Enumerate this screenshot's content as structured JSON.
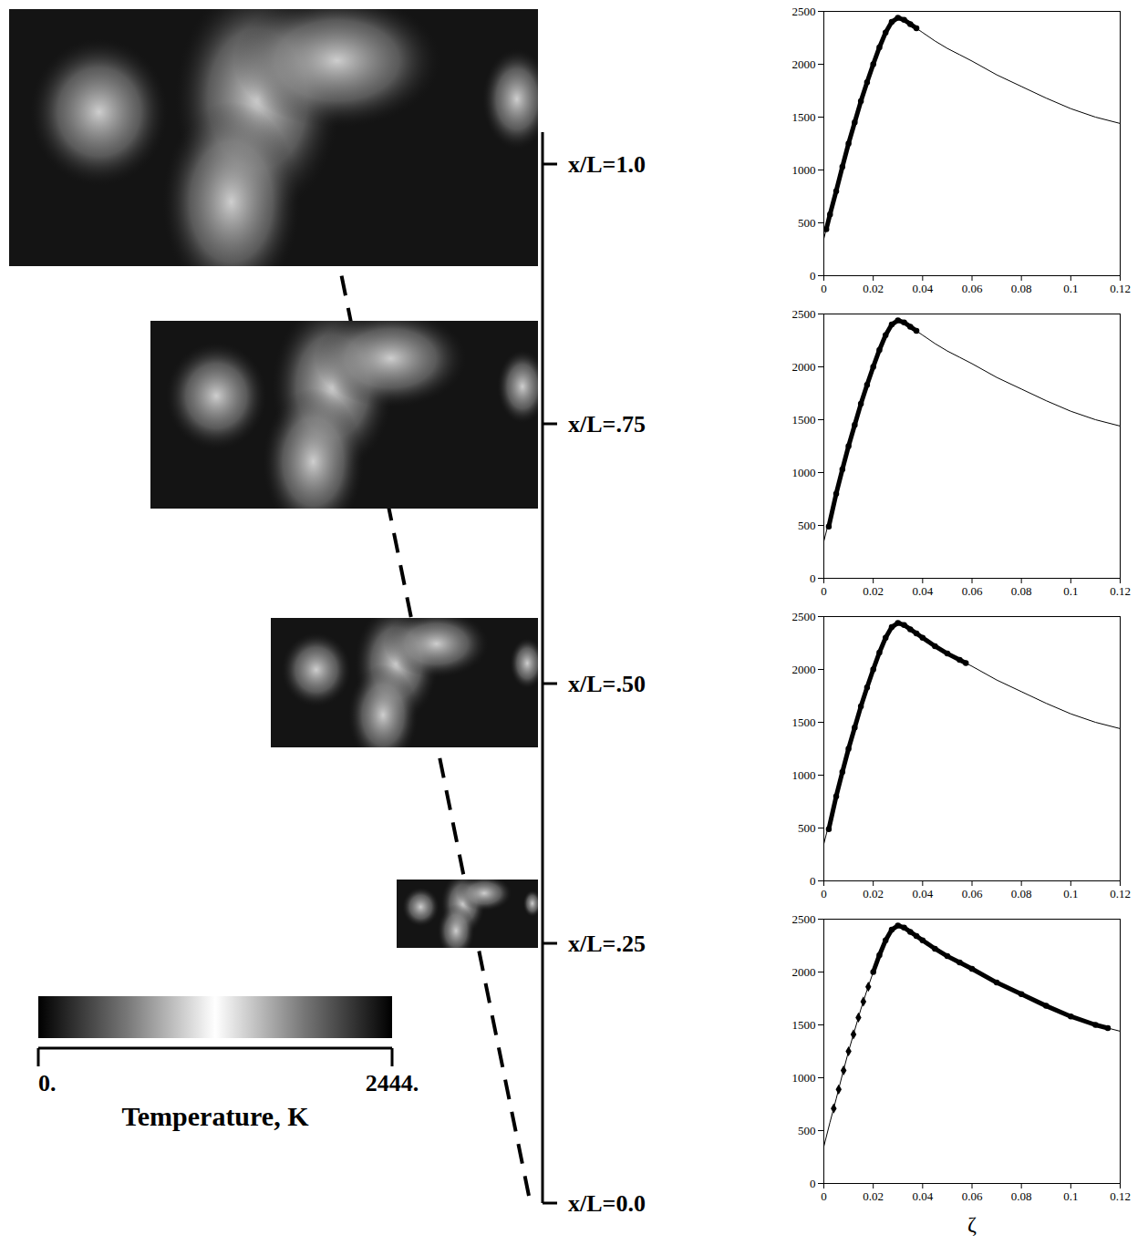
{
  "left_panel": {
    "stations": [
      {
        "value": 1.0,
        "label": "x/L=1.0"
      },
      {
        "value": 0.75,
        "label": "x/L=.75"
      },
      {
        "value": 0.5,
        "label": "x/L=.50"
      },
      {
        "value": 0.25,
        "label": "x/L=.25"
      },
      {
        "value": 0.0,
        "label": "x/L=0.0"
      }
    ],
    "colorbar": {
      "label": "Temperature, K",
      "range": [
        0,
        2444
      ],
      "ticks": [
        {
          "value": 0,
          "label": "0."
        },
        {
          "value": 2444,
          "label": "2444."
        }
      ]
    }
  },
  "chart_data": [
    {
      "type": "line",
      "xlim": [
        0,
        0.12
      ],
      "xticks": [
        0,
        0.02,
        0.04,
        0.06,
        0.08,
        0.1,
        0.12
      ],
      "ylim": [
        0,
        2500
      ],
      "yticks": [
        0,
        500,
        1000,
        1500,
        2000,
        2500
      ],
      "grid": false,
      "series": [
        {
          "type": "line",
          "color": "#000000",
          "x": [
            0,
            0.0025,
            0.005,
            0.0075,
            0.01,
            0.0125,
            0.015,
            0.0175,
            0.02,
            0.0225,
            0.025,
            0.0275,
            0.03,
            0.0325,
            0.035,
            0.0375,
            0.04,
            0.045,
            0.05,
            0.055,
            0.06,
            0.07,
            0.08,
            0.09,
            0.1,
            0.11,
            0.12
          ],
          "values": [
            350,
            580,
            800,
            1030,
            1250,
            1450,
            1650,
            1830,
            2000,
            2160,
            2300,
            2400,
            2440,
            2420,
            2380,
            2340,
            2300,
            2220,
            2150,
            2090,
            2030,
            1900,
            1790,
            1680,
            1580,
            1500,
            1440
          ]
        },
        {
          "type": "scatter",
          "marker": "circle",
          "line_style": "thick",
          "color": "#000000",
          "x": [
            0.001,
            0.0025,
            0.005,
            0.0075,
            0.01,
            0.0125,
            0.015,
            0.0175,
            0.02,
            0.0225,
            0.025,
            0.0275,
            0.03,
            0.0325,
            0.035,
            0.0375
          ],
          "values": [
            440,
            580,
            800,
            1030,
            1250,
            1450,
            1650,
            1830,
            2000,
            2160,
            2300,
            2400,
            2440,
            2420,
            2380,
            2340
          ]
        }
      ]
    },
    {
      "type": "line",
      "xlim": [
        0,
        0.12
      ],
      "xticks": [
        0,
        0.02,
        0.04,
        0.06,
        0.08,
        0.1,
        0.12
      ],
      "ylim": [
        0,
        2500
      ],
      "yticks": [
        0,
        500,
        1000,
        1500,
        2000,
        2500
      ],
      "grid": false,
      "series": [
        {
          "type": "line",
          "color": "#000000",
          "x": [
            0,
            0.0025,
            0.005,
            0.0075,
            0.01,
            0.0125,
            0.015,
            0.0175,
            0.02,
            0.0225,
            0.025,
            0.0275,
            0.03,
            0.0325,
            0.035,
            0.0375,
            0.04,
            0.045,
            0.05,
            0.055,
            0.06,
            0.07,
            0.08,
            0.09,
            0.1,
            0.11,
            0.12
          ],
          "values": [
            350,
            580,
            800,
            1030,
            1250,
            1450,
            1650,
            1830,
            2000,
            2160,
            2300,
            2400,
            2440,
            2420,
            2380,
            2340,
            2300,
            2220,
            2150,
            2090,
            2030,
            1900,
            1790,
            1680,
            1580,
            1500,
            1440
          ]
        },
        {
          "type": "scatter",
          "marker": "circle",
          "line_style": "thick",
          "color": "#000000",
          "x": [
            0.002,
            0.005,
            0.0075,
            0.01,
            0.0125,
            0.015,
            0.0175,
            0.02,
            0.0225,
            0.025,
            0.0275,
            0.03,
            0.0325,
            0.035,
            0.0375
          ],
          "values": [
            490,
            800,
            1030,
            1250,
            1450,
            1650,
            1830,
            2000,
            2160,
            2300,
            2400,
            2440,
            2420,
            2380,
            2340
          ]
        }
      ]
    },
    {
      "type": "line",
      "xlim": [
        0,
        0.12
      ],
      "xticks": [
        0,
        0.02,
        0.04,
        0.06,
        0.08,
        0.1,
        0.12
      ],
      "ylim": [
        0,
        2500
      ],
      "yticks": [
        0,
        500,
        1000,
        1500,
        2000,
        2500
      ],
      "grid": false,
      "series": [
        {
          "type": "line",
          "color": "#000000",
          "x": [
            0,
            0.0025,
            0.005,
            0.0075,
            0.01,
            0.0125,
            0.015,
            0.0175,
            0.02,
            0.0225,
            0.025,
            0.0275,
            0.03,
            0.0325,
            0.035,
            0.0375,
            0.04,
            0.045,
            0.05,
            0.055,
            0.06,
            0.07,
            0.08,
            0.09,
            0.1,
            0.11,
            0.12
          ],
          "values": [
            350,
            580,
            800,
            1030,
            1250,
            1450,
            1650,
            1830,
            2000,
            2160,
            2300,
            2400,
            2440,
            2420,
            2380,
            2340,
            2300,
            2220,
            2150,
            2090,
            2030,
            1900,
            1790,
            1680,
            1580,
            1500,
            1440
          ]
        },
        {
          "type": "scatter",
          "marker": "circle",
          "line_style": "thick",
          "color": "#000000",
          "x": [
            0.002,
            0.005,
            0.0075,
            0.01,
            0.0125,
            0.015,
            0.0175,
            0.02,
            0.0225,
            0.025,
            0.0275,
            0.03,
            0.0325,
            0.035,
            0.0375,
            0.04,
            0.045,
            0.05,
            0.055,
            0.0575
          ],
          "values": [
            490,
            800,
            1030,
            1250,
            1450,
            1650,
            1830,
            2000,
            2160,
            2300,
            2400,
            2440,
            2420,
            2380,
            2340,
            2300,
            2220,
            2150,
            2090,
            2060
          ]
        }
      ]
    },
    {
      "type": "line",
      "x_label": "ζ",
      "xlim": [
        0,
        0.12
      ],
      "xticks": [
        0,
        0.02,
        0.04,
        0.06,
        0.08,
        0.1,
        0.12
      ],
      "ylim": [
        0,
        2500
      ],
      "yticks": [
        0,
        500,
        1000,
        1500,
        2000,
        2500
      ],
      "grid": false,
      "series": [
        {
          "type": "line",
          "color": "#000000",
          "x": [
            0,
            0.0025,
            0.005,
            0.0075,
            0.01,
            0.0125,
            0.015,
            0.0175,
            0.02,
            0.0225,
            0.025,
            0.0275,
            0.03,
            0.0325,
            0.035,
            0.0375,
            0.04,
            0.045,
            0.05,
            0.055,
            0.06,
            0.07,
            0.08,
            0.09,
            0.1,
            0.11,
            0.12
          ],
          "values": [
            350,
            580,
            800,
            1030,
            1250,
            1450,
            1650,
            1830,
            2000,
            2160,
            2300,
            2400,
            2440,
            2420,
            2380,
            2340,
            2300,
            2220,
            2150,
            2090,
            2030,
            1900,
            1790,
            1680,
            1580,
            1500,
            1440
          ]
        },
        {
          "type": "scatter",
          "marker": "diamond",
          "color": "#000000",
          "x": [
            0.004,
            0.006,
            0.008,
            0.01,
            0.012,
            0.014,
            0.016,
            0.018
          ],
          "values": [
            710,
            890,
            1070,
            1250,
            1410,
            1570,
            1720,
            1860
          ]
        },
        {
          "type": "scatter",
          "marker": "circle",
          "line_style": "thick",
          "color": "#000000",
          "x": [
            0.02,
            0.0225,
            0.025,
            0.0275,
            0.03,
            0.0325,
            0.035,
            0.0375,
            0.04,
            0.045,
            0.05,
            0.055,
            0.06,
            0.07,
            0.08,
            0.09,
            0.1,
            0.11,
            0.115
          ],
          "values": [
            2000,
            2160,
            2300,
            2400,
            2440,
            2420,
            2380,
            2340,
            2300,
            2220,
            2150,
            2090,
            2030,
            1900,
            1790,
            1680,
            1580,
            1500,
            1470
          ]
        }
      ]
    }
  ]
}
